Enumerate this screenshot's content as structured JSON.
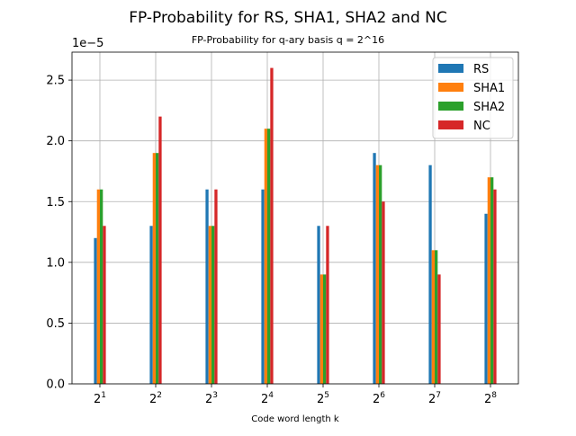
{
  "chart_data": {
    "type": "bar",
    "title": "FP-Probability for RS, SHA1, SHA2 and NC",
    "subtitle": "FP-Probability for q-ary basis q = 2^16",
    "xlabel": "Code word length k",
    "ylabel": "",
    "y_offset_text": "1e−5",
    "categories": [
      {
        "base": "2",
        "exp": "1"
      },
      {
        "base": "2",
        "exp": "2"
      },
      {
        "base": "2",
        "exp": "3"
      },
      {
        "base": "2",
        "exp": "4"
      },
      {
        "base": "2",
        "exp": "5"
      },
      {
        "base": "2",
        "exp": "6"
      },
      {
        "base": "2",
        "exp": "7"
      },
      {
        "base": "2",
        "exp": "8"
      }
    ],
    "ylim": [
      0,
      2.73
    ],
    "yticks": [
      "0.0",
      "0.5",
      "1.0",
      "1.5",
      "2.0",
      "2.5"
    ],
    "grid": true,
    "legend_position": "top-right",
    "series": [
      {
        "name": "RS",
        "color": "#1f77b4",
        "values": [
          1.2,
          1.3,
          1.6,
          1.6,
          1.3,
          1.9,
          1.8,
          1.4
        ]
      },
      {
        "name": "SHA1",
        "color": "#ff7f0e",
        "values": [
          1.6,
          1.9,
          1.3,
          2.1,
          0.9,
          1.8,
          1.1,
          1.7
        ]
      },
      {
        "name": "SHA2",
        "color": "#2ca02c",
        "values": [
          1.6,
          1.9,
          1.3,
          2.1,
          0.9,
          1.8,
          1.1,
          1.7
        ]
      },
      {
        "name": "NC",
        "color": "#d62728",
        "values": [
          1.3,
          2.2,
          1.6,
          2.6,
          1.3,
          1.5,
          0.9,
          1.6
        ]
      }
    ]
  }
}
